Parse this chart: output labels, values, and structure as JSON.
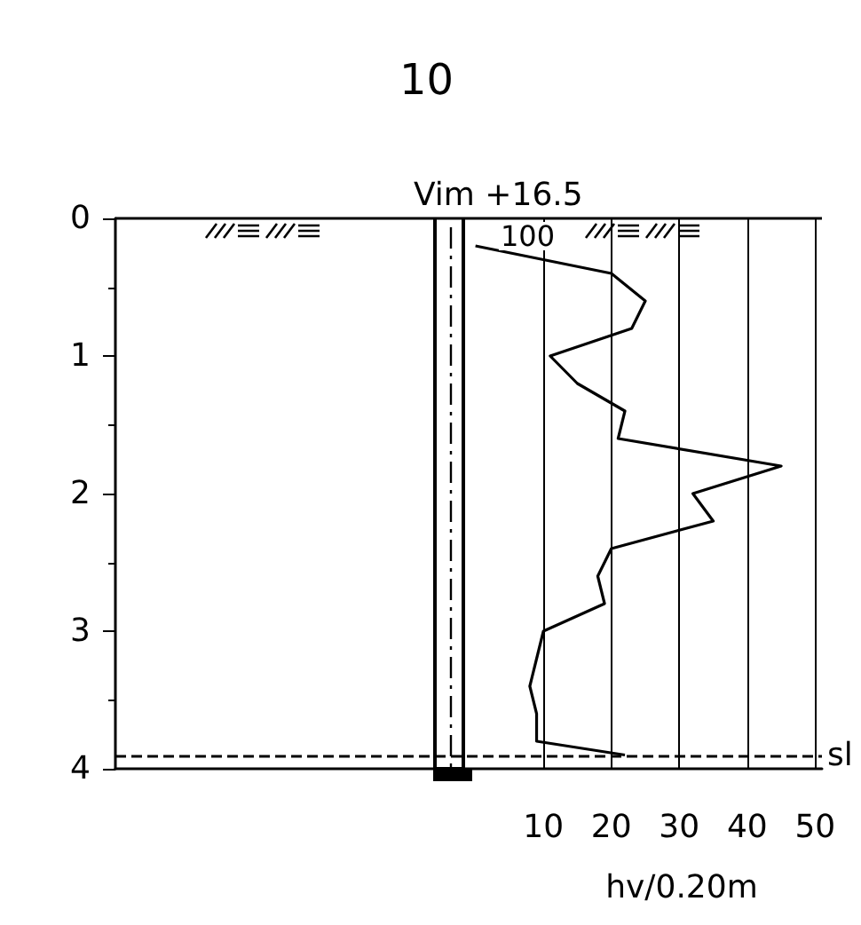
{
  "chart_data": {
    "type": "line",
    "title": "10",
    "xlabel": "hv/0.20m",
    "x": [
      0,
      20,
      25,
      23,
      11,
      15,
      22,
      21,
      45,
      32,
      35,
      20,
      18,
      19,
      10,
      9,
      8,
      9,
      9,
      22
    ],
    "values": [
      0.2,
      0.4,
      0.6,
      0.8,
      1.0,
      1.2,
      1.4,
      1.6,
      1.8,
      2.0,
      2.2,
      2.4,
      2.6,
      2.8,
      3.0,
      3.2,
      3.4,
      3.6,
      3.8,
      3.9
    ],
    "color": "#000000",
    "marker": "none",
    "line_style": "solid",
    "xlim": [
      -53,
      51
    ],
    "xticks": [
      10,
      20,
      30,
      40,
      50
    ],
    "ylim": [
      4,
      0
    ],
    "yticks": [
      0,
      1,
      2,
      3,
      4
    ],
    "grid": "x",
    "ref_lines": [
      {
        "axis": "y",
        "value": 0,
        "label": "Vim +16.5"
      },
      {
        "axis": "y",
        "value": 3.9,
        "label": "sl",
        "line_style": "dashed"
      }
    ],
    "annotations": [
      "100"
    ]
  }
}
